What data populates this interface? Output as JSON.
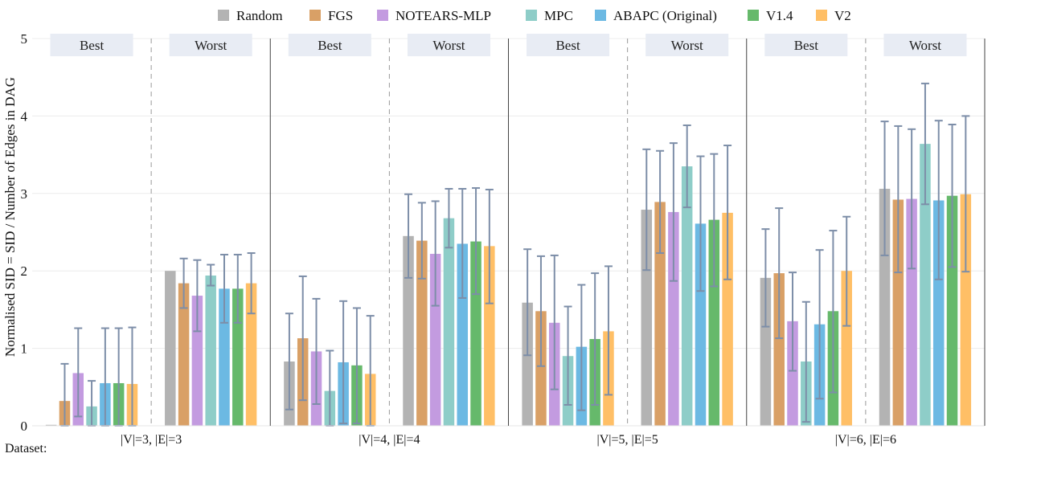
{
  "chart_data": {
    "type": "bar",
    "ylabel": "Normalised SID = SID / Number of Edges in DAG",
    "xlabel_prefix": "Dataset:",
    "ylim": [
      0,
      5
    ],
    "yticks": [
      0,
      1,
      2,
      3,
      4,
      5
    ],
    "grid": true,
    "legend_position": "top",
    "series_names": [
      "Random",
      "FGS",
      "NOTEARS-MLP",
      "MPC",
      "ABAPC (Original)",
      "V1.4",
      "V2"
    ],
    "series_colors": [
      "#b3b3b3",
      "#d9a066",
      "#c39be0",
      "#8ecdc8",
      "#6cb9e3",
      "#66b96b",
      "#ffbf66"
    ],
    "error_bar_color": "#7d8ea8",
    "panel_bg": "#e8ecf4",
    "datasets": [
      {
        "label": "|V|=3, |E|=3",
        "panels": [
          {
            "label": "Best",
            "values": [
              0.0,
              0.32,
              0.68,
              0.25,
              0.55,
              0.55,
              0.54
            ],
            "err_low": [
              0.0,
              0.0,
              0.12,
              0.0,
              0.0,
              0.0,
              0.0
            ],
            "err_high": [
              0.0,
              0.8,
              1.26,
              0.58,
              1.26,
              1.26,
              1.27
            ]
          },
          {
            "label": "Worst",
            "values": [
              2.0,
              1.84,
              1.68,
              1.94,
              1.77,
              1.77,
              1.84
            ],
            "err_low": [
              2.0,
              1.52,
              1.22,
              1.81,
              1.33,
              1.33,
              1.45
            ],
            "err_high": [
              2.0,
              2.16,
              2.14,
              2.08,
              2.21,
              2.21,
              2.23
            ]
          }
        ]
      },
      {
        "label": "|V|=4, |E|=4",
        "panels": [
          {
            "label": "Best",
            "values": [
              0.83,
              1.13,
              0.96,
              0.45,
              0.82,
              0.78,
              0.67
            ],
            "err_low": [
              0.21,
              0.33,
              0.28,
              0.0,
              0.03,
              0.03,
              0.0
            ],
            "err_high": [
              1.45,
              1.93,
              1.64,
              0.97,
              1.61,
              1.52,
              1.42
            ]
          },
          {
            "label": "Worst",
            "values": [
              2.45,
              2.39,
              2.22,
              2.68,
              2.35,
              2.38,
              2.32
            ],
            "err_low": [
              1.91,
              1.9,
              1.55,
              2.3,
              1.65,
              1.7,
              1.58
            ],
            "err_high": [
              2.99,
              2.88,
              2.9,
              3.06,
              3.06,
              3.07,
              3.05
            ]
          }
        ]
      },
      {
        "label": "|V|=5, |E|=5",
        "panels": [
          {
            "label": "Best",
            "values": [
              1.59,
              1.48,
              1.33,
              0.9,
              1.02,
              1.12,
              1.22
            ],
            "err_low": [
              0.91,
              0.77,
              0.47,
              0.27,
              0.2,
              0.27,
              0.4
            ],
            "err_high": [
              2.28,
              2.19,
              2.2,
              1.54,
              1.82,
              1.97,
              2.06
            ]
          },
          {
            "label": "Worst",
            "values": [
              2.79,
              2.89,
              2.76,
              3.35,
              2.61,
              2.66,
              2.75
            ],
            "err_low": [
              2.01,
              2.23,
              1.87,
              2.82,
              1.74,
              1.8,
              1.89
            ],
            "err_high": [
              3.57,
              3.55,
              3.65,
              3.88,
              3.48,
              3.51,
              3.62
            ]
          }
        ]
      },
      {
        "label": "|V|=6, |E|=6",
        "panels": [
          {
            "label": "Best",
            "values": [
              1.91,
              1.97,
              1.35,
              0.83,
              1.31,
              1.48,
              2.0
            ],
            "err_low": [
              1.28,
              1.13,
              0.71,
              0.05,
              0.35,
              0.43,
              1.29
            ],
            "err_high": [
              2.54,
              2.81,
              1.98,
              1.6,
              2.27,
              2.52,
              2.7
            ]
          },
          {
            "label": "Worst",
            "values": [
              3.06,
              2.92,
              2.93,
              3.64,
              2.91,
              2.97,
              2.99
            ],
            "err_low": [
              2.2,
              1.98,
              2.03,
              2.86,
              1.89,
              2.05,
              1.99
            ],
            "err_high": [
              3.93,
              3.87,
              3.83,
              4.42,
              3.94,
              3.89,
              4.0
            ]
          }
        ]
      }
    ]
  }
}
